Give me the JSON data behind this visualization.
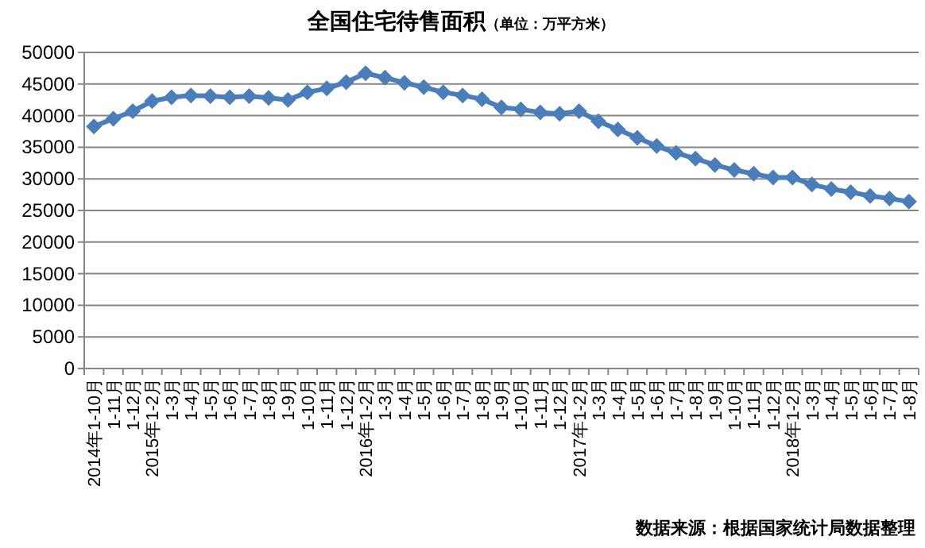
{
  "chart_data": {
    "type": "line",
    "title": "全国住宅待售面积",
    "subtitle": "（单位：万平方米）",
    "categories": [
      "2014年1-10月",
      "1-11月",
      "1-12月",
      "2015年1-2月",
      "1-3月",
      "1-4月",
      "1-5月",
      "1-6月",
      "1-7月",
      "1-8月",
      "1-9月",
      "1-10月",
      "1-11月",
      "1-12月",
      "2016年1-2月",
      "1-3月",
      "1-4月",
      "1-5月",
      "1-6月",
      "1-7月",
      "1-8月",
      "1-9月",
      "1-10月",
      "1-11月",
      "1-12月",
      "2017年1-2月",
      "1-3月",
      "1-4月",
      "1-5月",
      "1-6月",
      "1-7月",
      "1-8月",
      "1-9月",
      "1-10月",
      "1-11月",
      "1-12月",
      "2018年1-2月",
      "1-3月",
      "1-4月",
      "1-5月",
      "1-6月",
      "1-7月",
      "1-8月"
    ],
    "series": [
      {
        "color": "#4a7ebb",
        "values": [
          38300,
          39500,
          40700,
          42300,
          42900,
          43200,
          43100,
          42900,
          43100,
          42800,
          42500,
          43700,
          44300,
          45300,
          46700,
          46000,
          45200,
          44500,
          43700,
          43200,
          42600,
          41300,
          41000,
          40500,
          40300,
          40700,
          39100,
          37800,
          36500,
          35200,
          34100,
          33200,
          32200,
          31400,
          30800,
          30200,
          30200,
          29100,
          28400,
          27900,
          27300,
          26900,
          26400
        ]
      }
    ],
    "ylim": [
      0,
      50000
    ],
    "yticks": [
      0,
      5000,
      10000,
      15000,
      20000,
      25000,
      30000,
      35000,
      40000,
      45000,
      50000
    ],
    "grid": "y",
    "marker": "diamond",
    "line_style": "solid",
    "annotations": [
      "数据来源：根据国家统计局数据整理"
    ]
  }
}
